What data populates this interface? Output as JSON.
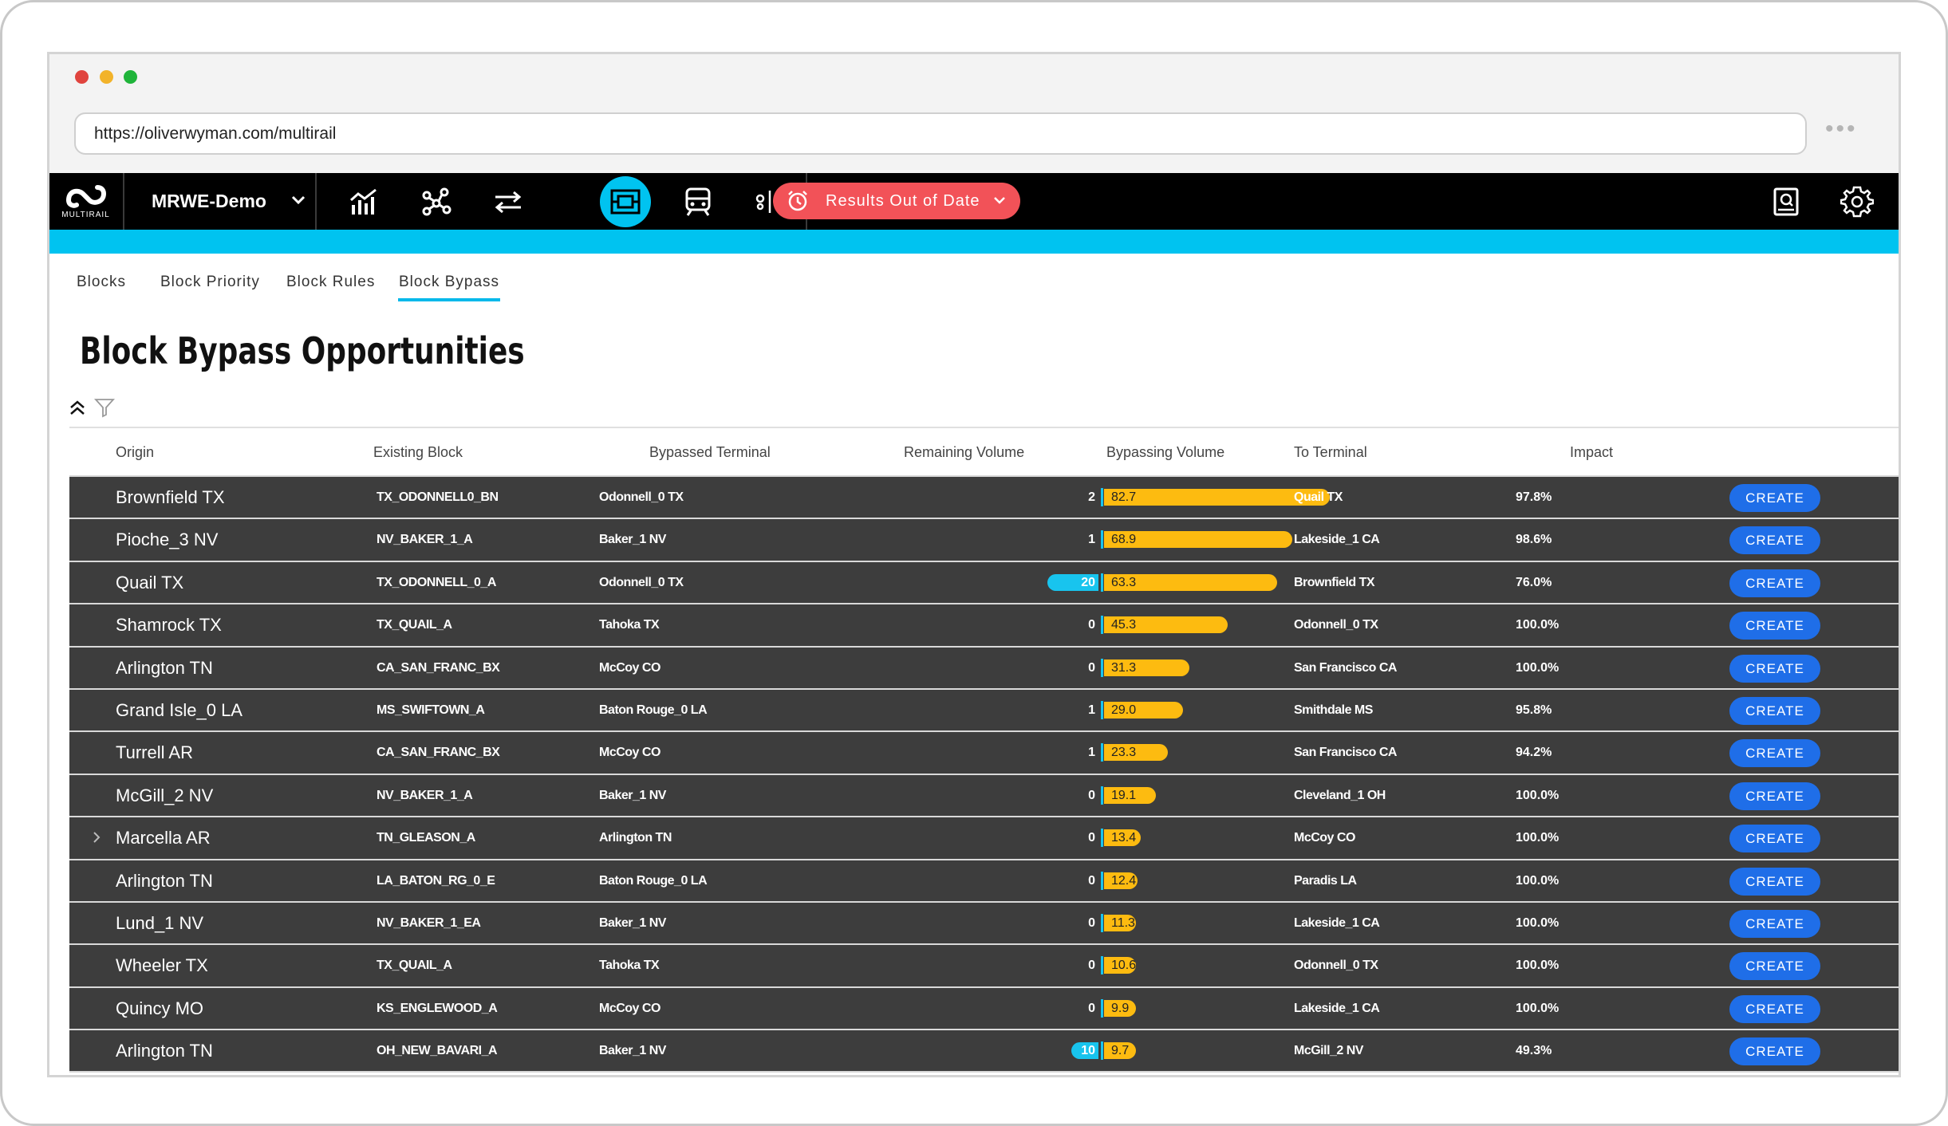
{
  "browser": {
    "url": "https://oliverwyman.com/multirail",
    "more_label": "•••"
  },
  "app": {
    "logo_text": "MULTIRAIL",
    "project_name": "MRWE-Demo",
    "alert_label": "Results Out of Date",
    "accent_color": "#00c3f0",
    "alert_color": "#f25258",
    "create_color": "#1f6ee8"
  },
  "tabs": [
    {
      "label": "Blocks"
    },
    {
      "label": "Block Priority"
    },
    {
      "label": "Block Rules"
    },
    {
      "label": "Block Bypass"
    }
  ],
  "page": {
    "title": "Block Bypass Opportunities"
  },
  "table": {
    "headers": {
      "origin": "Origin",
      "existing_block": "Existing Block",
      "bypassed_terminal": "Bypassed Terminal",
      "remaining_volume": "Remaining Volume",
      "bypassing_volume": "Bypassing Volume",
      "to_terminal": "To Terminal",
      "impact": "Impact"
    },
    "create_label": "CREATE",
    "rows": [
      {
        "origin": "Brownfield TX",
        "block": "TX_ODONNELL0_BN",
        "bypassed": "Odonnell_0 TX",
        "remaining": "2",
        "bypassing": "82.7",
        "to": "Quail TX",
        "impact": "97.8%"
      },
      {
        "origin": "Pioche_3 NV",
        "block": "NV_BAKER_1_A",
        "bypassed": "Baker_1 NV",
        "remaining": "1",
        "bypassing": "68.9",
        "to": "Lakeside_1 CA",
        "impact": "98.6%"
      },
      {
        "origin": "Quail TX",
        "block": "TX_ODONNELL_0_A",
        "bypassed": "Odonnell_0 TX",
        "remaining": "20",
        "bypassing": "63.3",
        "to": "Brownfield TX",
        "impact": "76.0%"
      },
      {
        "origin": "Shamrock TX",
        "block": "TX_QUAIL_A",
        "bypassed": "Tahoka TX",
        "remaining": "0",
        "bypassing": "45.3",
        "to": "Odonnell_0 TX",
        "impact": "100.0%"
      },
      {
        "origin": "Arlington TN",
        "block": "CA_SAN_FRANC_BX",
        "bypassed": "McCoy CO",
        "remaining": "0",
        "bypassing": "31.3",
        "to": "San Francisco CA",
        "impact": "100.0%"
      },
      {
        "origin": "Grand Isle_0 LA",
        "block": "MS_SWIFTOWN_A",
        "bypassed": "Baton Rouge_0 LA",
        "remaining": "1",
        "bypassing": "29.0",
        "to": "Smithdale MS",
        "impact": "95.8%"
      },
      {
        "origin": "Turrell AR",
        "block": "CA_SAN_FRANC_BX",
        "bypassed": "McCoy CO",
        "remaining": "1",
        "bypassing": "23.3",
        "to": "San Francisco CA",
        "impact": "94.2%"
      },
      {
        "origin": "McGill_2 NV",
        "block": "NV_BAKER_1_A",
        "bypassed": "Baker_1 NV",
        "remaining": "0",
        "bypassing": "19.1",
        "to": "Cleveland_1 OH",
        "impact": "100.0%"
      },
      {
        "origin": "Marcella AR",
        "block": "TN_GLEASON_A",
        "bypassed": "Arlington TN",
        "remaining": "0",
        "bypassing": "13.4",
        "to": "McCoy CO",
        "impact": "100.0%",
        "expandable": true
      },
      {
        "origin": "Arlington TN",
        "block": "LA_BATON_RG_0_E",
        "bypassed": "Baton Rouge_0 LA",
        "remaining": "0",
        "bypassing": "12.4",
        "to": "Paradis LA",
        "impact": "100.0%"
      },
      {
        "origin": "Lund_1 NV",
        "block": "NV_BAKER_1_EA",
        "bypassed": "Baker_1 NV",
        "remaining": "0",
        "bypassing": "11.3",
        "to": "Lakeside_1 CA",
        "impact": "100.0%"
      },
      {
        "origin": "Wheeler TX",
        "block": "TX_QUAIL_A",
        "bypassed": "Tahoka TX",
        "remaining": "0",
        "bypassing": "10.6",
        "to": "Odonnell_0 TX",
        "impact": "100.0%"
      },
      {
        "origin": "Quincy MO",
        "block": "KS_ENGLEWOOD_A",
        "bypassed": "McCoy CO",
        "remaining": "0",
        "bypassing": "9.9",
        "to": "Lakeside_1 CA",
        "impact": "100.0%"
      },
      {
        "origin": "Arlington TN",
        "block": "OH_NEW_BAVARI_A",
        "bypassed": "Baker_1 NV",
        "remaining": "10",
        "bypassing": "9.7",
        "to": "McGill_2 NV",
        "impact": "49.3%"
      }
    ]
  }
}
